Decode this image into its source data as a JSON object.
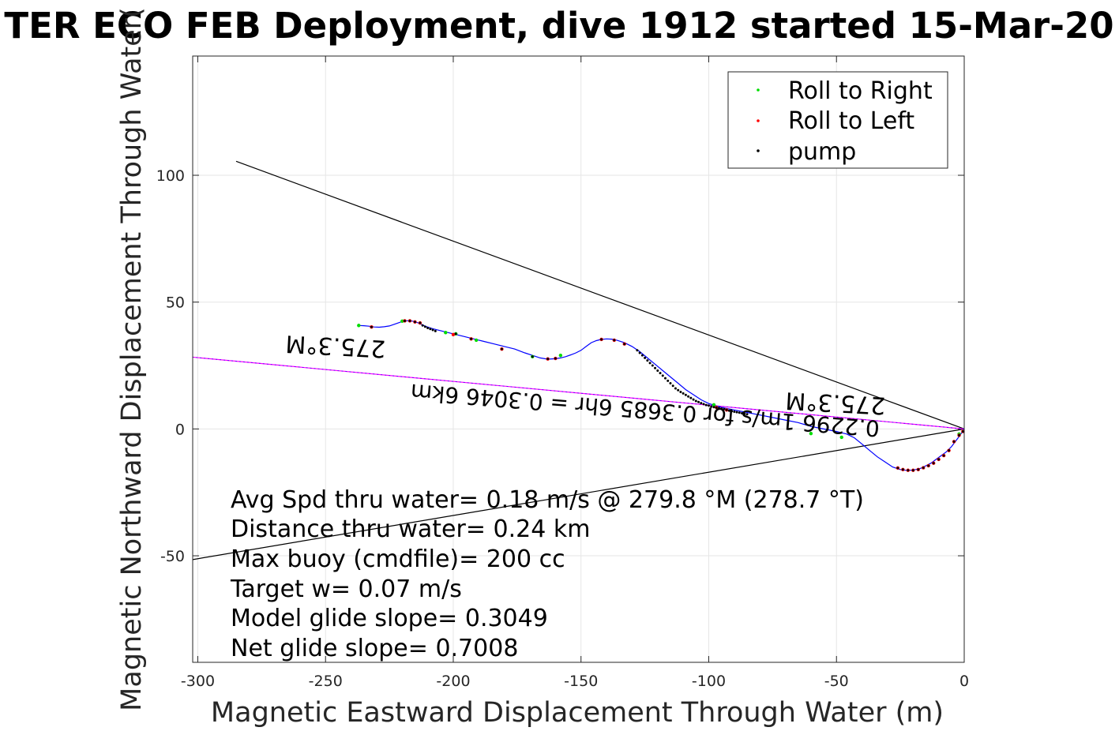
{
  "chart_data": {
    "type": "line",
    "title": "TER ECO FEB Deployment, dive 1912 started 15-Mar-20",
    "xlabel": "Magnetic Eastward Displacement Through Water (m)",
    "ylabel": "Magnetic Northward Displacement Through Water(",
    "xlim": [
      -302,
      0
    ],
    "ylim": [
      -92,
      147
    ],
    "xticks": [
      -300,
      -250,
      -200,
      -150,
      -100,
      -50,
      0
    ],
    "yticks": [
      -50,
      0,
      50,
      100
    ],
    "xtick_labels": [
      "-300",
      "-250",
      "-200",
      "-150",
      "-100",
      "-50",
      "0"
    ],
    "ytick_labels": [
      "-50",
      "0",
      "50",
      "100"
    ],
    "grid": true,
    "legend_position": "top-right",
    "legend": [
      {
        "label": "Roll to Right",
        "color": "#00dd00",
        "marker": "dot"
      },
      {
        "label": "Roll to Left",
        "color": "#ff0000",
        "marker": "dot"
      },
      {
        "label": "pump",
        "color": "#000000",
        "marker": "dot"
      }
    ],
    "track": {
      "color": "#0000ff",
      "x": [
        0,
        -1,
        -2,
        -3.5,
        -5,
        -7,
        -9,
        -11,
        -13,
        -15,
        -17,
        -19,
        -21,
        -23,
        -25,
        -28,
        -31,
        -34,
        -37,
        -40,
        -43,
        -46,
        -50,
        -55,
        -60,
        -65,
        -70,
        -75,
        -80,
        -85,
        -90,
        -95,
        -100,
        -103,
        -106,
        -109,
        -112,
        -115,
        -118,
        -121,
        -124,
        -127,
        -130,
        -133,
        -136,
        -138,
        -140,
        -142,
        -144,
        -146,
        -148,
        -150,
        -152,
        -154,
        -156,
        -158,
        -160,
        -163,
        -166,
        -169,
        -172,
        -176,
        -180,
        -184,
        -188,
        -192,
        -196,
        -200,
        -204,
        -208,
        -211,
        -213,
        -215,
        -217,
        -219,
        -221,
        -223,
        -225,
        -227,
        -229,
        -231,
        -233,
        -235,
        -237
      ],
      "y": [
        0,
        -1.5,
        -3,
        -5,
        -7,
        -9,
        -10.5,
        -12,
        -13.5,
        -14.5,
        -15.5,
        -16,
        -16.3,
        -16.3,
        -16,
        -15,
        -13,
        -11,
        -8.5,
        -6,
        -3.5,
        -2,
        -1,
        0,
        1,
        2.5,
        3.5,
        4.5,
        5.5,
        6.5,
        7.5,
        8.5,
        10,
        11.5,
        13.5,
        15.5,
        18,
        20.5,
        23,
        25.5,
        28,
        30.5,
        32.5,
        34,
        35,
        35.4,
        35.5,
        35.3,
        34.8,
        34,
        32.5,
        31,
        30,
        29.2,
        28.5,
        28,
        27.7,
        27.5,
        28,
        29,
        30,
        31.5,
        32.5,
        33.5,
        34.5,
        35.5,
        36.5,
        37.5,
        38.5,
        39.5,
        40.5,
        41.5,
        42.3,
        42.7,
        42.6,
        42,
        41.3,
        40.6,
        40.3,
        40.1,
        40.2,
        40.5,
        40.7,
        40.8
      ]
    },
    "roll_right_points": {
      "x": [
        -237,
        -220,
        -203,
        -199,
        -191,
        -169,
        -158,
        -98,
        -60,
        -48,
        -2
      ],
      "y": [
        40.8,
        42.5,
        38,
        37.5,
        35,
        28.5,
        29,
        9.5,
        -1.8,
        -3.3,
        -2
      ]
    },
    "roll_left_points": {
      "x": [
        -232,
        -219,
        -217,
        -215,
        -213,
        -200,
        -193,
        -181,
        -163,
        -160,
        -142,
        -137,
        -133,
        -97,
        -93,
        -26,
        -24,
        -22,
        -20,
        -18,
        -16,
        -14,
        -12,
        -10,
        -8,
        -6,
        -4,
        -2,
        -0.5
      ],
      "y": [
        40.2,
        42.6,
        42.6,
        42.2,
        41.8,
        37.2,
        35.5,
        31.5,
        27.6,
        27.8,
        35.3,
        35,
        33.5,
        8.5,
        7.5,
        -15.4,
        -16,
        -16.3,
        -16.3,
        -16,
        -15.3,
        -14.5,
        -13.5,
        -12,
        -10.5,
        -8.5,
        -5,
        -2.5,
        -1
      ]
    },
    "pump_points": {
      "x": [
        -232,
        -219,
        -217,
        -215,
        -213,
        -212,
        -211,
        -210,
        -209,
        -208,
        -207,
        -199,
        -193,
        -181,
        -169,
        -163,
        -160,
        -142,
        -137,
        -133,
        -128,
        -127,
        -126,
        -125,
        -124,
        -123,
        -122,
        -121,
        -120,
        -119,
        -118,
        -117,
        -116,
        -115,
        -114,
        -113,
        -112,
        -111,
        -110,
        -109,
        -108,
        -107,
        -106,
        -105,
        -104,
        -103,
        -102,
        -101,
        -100,
        -99,
        -98,
        -97,
        -96,
        -95,
        -94,
        -93,
        -92,
        -91,
        -90,
        -89,
        -88,
        -87,
        -86,
        -85,
        -26,
        -24,
        -22,
        -20,
        -18,
        -16,
        -14,
        -12,
        -10,
        -8,
        -6,
        -4,
        -2,
        -0.5
      ],
      "y": [
        40.2,
        42.6,
        42.6,
        42.2,
        41.8,
        40.8,
        40.3,
        39.8,
        39.4,
        39,
        38.6,
        37.5,
        35.5,
        31.5,
        28.5,
        27.6,
        27.8,
        35.3,
        35,
        33.5,
        31,
        30,
        29,
        28,
        27,
        26,
        25,
        24,
        23,
        22,
        21,
        20,
        19,
        18,
        17,
        16,
        15.3,
        14.6,
        14,
        13.4,
        12.8,
        12.2,
        11.6,
        11,
        10.6,
        10.2,
        9.8,
        9.4,
        9.2,
        8.8,
        8.6,
        8.4,
        8.2,
        8,
        7.8,
        7.5,
        7.2,
        7,
        6.8,
        6.6,
        6.4,
        6.2,
        6,
        5.8,
        -15.4,
        -16,
        -16.3,
        -16.3,
        -16,
        -15.3,
        -14.5,
        -13.5,
        -12,
        -10.5,
        -8.5,
        -5,
        -2.5,
        -1
      ]
    },
    "reference_lines": [
      {
        "color": "#000000",
        "x": [
          0,
          -285
        ],
        "y": [
          0,
          105.5
        ]
      },
      {
        "color": "#000000",
        "x": [
          0,
          -302
        ],
        "y": [
          0,
          -51.5
        ]
      },
      {
        "color": "#ff00ff",
        "x": [
          0,
          -302
        ],
        "y": [
          0,
          28.3
        ]
      }
    ],
    "annotations": {
      "heading_upper": "275.3°M",
      "heading_lower": "275.3°M",
      "speed_line": "0.2296 1m/s for 0.3685 6hr = 0.3046 6km"
    },
    "stats_text": [
      "Avg Spd thru water=  0.18 m/s @ 279.8 °M (278.7 °T)",
      "Distance thru water=  0.24 km",
      "Max buoy (cmdfile)= 200 cc",
      "Target w= 0.07 m/s",
      "Model glide slope= 0.3049",
      "Net glide slope= 0.7008"
    ]
  }
}
